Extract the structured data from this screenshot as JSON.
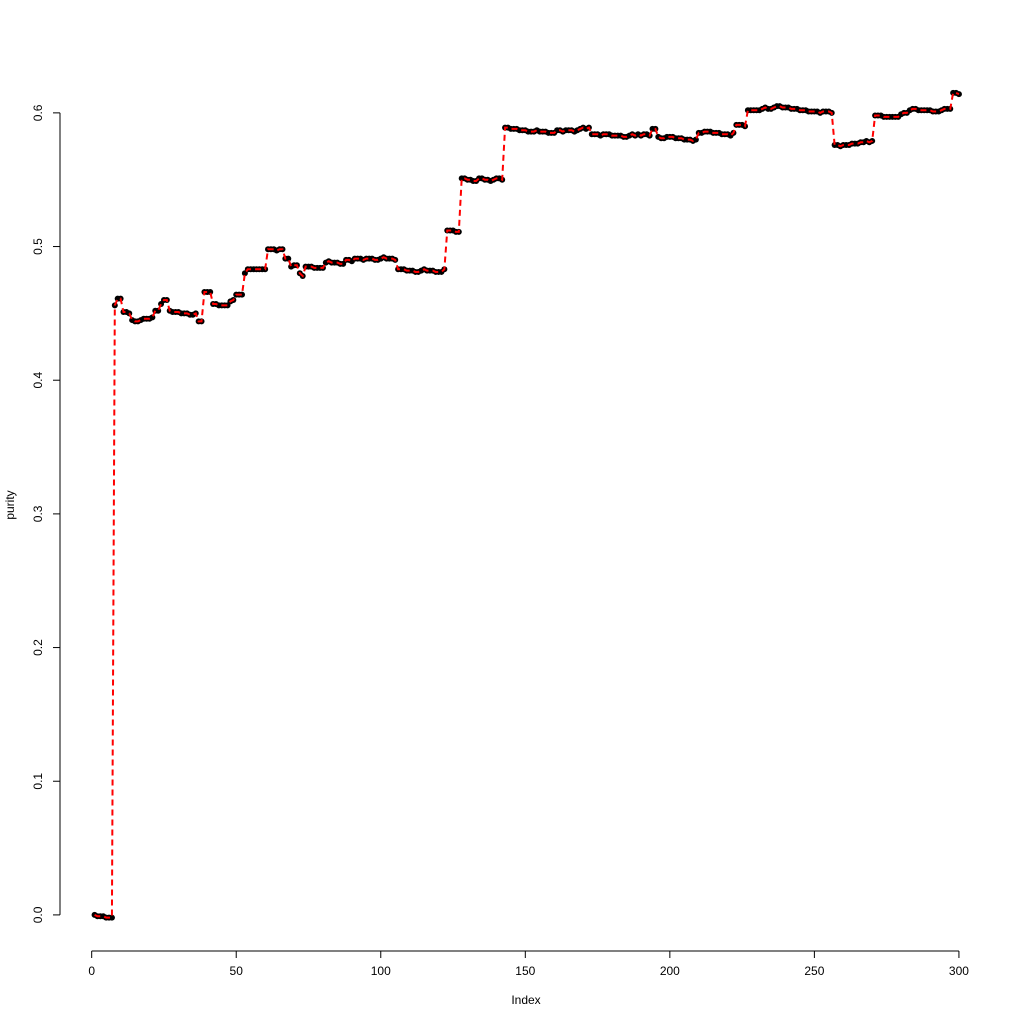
{
  "chart_data": {
    "type": "line",
    "xlabel": "Index",
    "ylabel": "purity",
    "x": [
      1,
      2,
      3,
      4,
      5,
      6,
      7,
      8,
      9,
      10,
      11,
      12,
      13,
      14,
      15,
      16,
      17,
      18,
      19,
      20,
      21,
      22,
      23,
      24,
      25,
      26,
      27,
      28,
      29,
      30,
      31,
      32,
      33,
      34,
      35,
      36,
      37,
      38,
      39,
      40,
      41,
      42,
      43,
      44,
      45,
      46,
      47,
      48,
      49,
      50,
      51,
      52,
      53,
      54,
      55,
      56,
      57,
      58,
      59,
      60,
      61,
      62,
      63,
      64,
      65,
      66,
      67,
      68,
      69,
      70,
      71,
      72,
      73,
      74,
      75,
      76,
      77,
      78,
      79,
      80,
      81,
      82,
      83,
      84,
      85,
      86,
      87,
      88,
      89,
      90,
      91,
      92,
      93,
      94,
      95,
      96,
      97,
      98,
      99,
      100,
      101,
      102,
      103,
      104,
      105,
      106,
      107,
      108,
      109,
      110,
      111,
      112,
      113,
      114,
      115,
      116,
      117,
      118,
      119,
      120,
      121,
      122,
      123,
      124,
      125,
      126,
      127,
      128,
      129,
      130,
      131,
      132,
      133,
      134,
      135,
      136,
      137,
      138,
      139,
      140,
      141,
      142,
      143,
      144,
      145,
      146,
      147,
      148,
      149,
      150,
      151,
      152,
      153,
      154,
      155,
      156,
      157,
      158,
      159,
      160,
      161,
      162,
      163,
      164,
      165,
      166,
      167,
      168,
      169,
      170,
      171,
      172,
      173,
      174,
      175,
      176,
      177,
      178,
      179,
      180,
      181,
      182,
      183,
      184,
      185,
      186,
      187,
      188,
      189,
      190,
      191,
      192,
      193,
      194,
      195,
      196,
      197,
      198,
      199,
      200,
      201,
      202,
      203,
      204,
      205,
      206,
      207,
      208,
      209,
      210,
      211,
      212,
      213,
      214,
      215,
      216,
      217,
      218,
      219,
      220,
      221,
      222,
      223,
      224,
      225,
      226,
      227,
      228,
      229,
      230,
      231,
      232,
      233,
      234,
      235,
      236,
      237,
      238,
      239,
      240,
      241,
      242,
      243,
      244,
      245,
      246,
      247,
      248,
      249,
      250,
      251,
      252,
      253,
      254,
      255,
      256,
      257,
      258,
      259,
      260,
      261,
      262,
      263,
      264,
      265,
      266,
      267,
      268,
      269,
      270,
      271,
      272,
      273,
      274,
      275,
      276,
      277,
      278,
      279,
      280,
      281,
      282,
      283,
      284,
      285,
      286,
      287,
      288,
      289,
      290,
      291,
      292,
      293,
      294,
      295,
      296,
      297,
      298,
      299,
      300
    ],
    "series": [
      {
        "color": "#ff0000",
        "point_color": "#000000",
        "values": [
          0,
          -0.001,
          -0.001,
          -0.001,
          -0.002,
          -0.002,
          -0.002,
          0.456,
          0.461,
          0.461,
          0.451,
          0.451,
          0.45,
          0.445,
          0.444,
          0.444,
          0.445,
          0.446,
          0.446,
          0.446,
          0.447,
          0.452,
          0.452,
          0.457,
          0.46,
          0.46,
          0.452,
          0.451,
          0.451,
          0.451,
          0.45,
          0.45,
          0.45,
          0.449,
          0.449,
          0.45,
          0.444,
          0.444,
          0.466,
          0.466,
          0.466,
          0.457,
          0.457,
          0.456,
          0.456,
          0.456,
          0.456,
          0.459,
          0.46,
          0.464,
          0.464,
          0.464,
          0.48,
          0.483,
          0.483,
          0.483,
          0.483,
          0.483,
          0.483,
          0.483,
          0.498,
          0.498,
          0.498,
          0.497,
          0.498,
          0.498,
          0.491,
          0.491,
          0.485,
          0.486,
          0.486,
          0.48,
          0.478,
          0.485,
          0.485,
          0.485,
          0.484,
          0.484,
          0.484,
          0.484,
          0.488,
          0.489,
          0.488,
          0.488,
          0.488,
          0.487,
          0.487,
          0.49,
          0.49,
          0.489,
          0.491,
          0.491,
          0.491,
          0.49,
          0.491,
          0.491,
          0.491,
          0.49,
          0.49,
          0.491,
          0.492,
          0.491,
          0.491,
          0.491,
          0.49,
          0.483,
          0.483,
          0.483,
          0.482,
          0.482,
          0.482,
          0.481,
          0.481,
          0.482,
          0.483,
          0.482,
          0.482,
          0.482,
          0.481,
          0.481,
          0.481,
          0.483,
          0.512,
          0.512,
          0.512,
          0.511,
          0.511,
          0.551,
          0.551,
          0.55,
          0.55,
          0.549,
          0.549,
          0.551,
          0.551,
          0.55,
          0.55,
          0.549,
          0.55,
          0.551,
          0.551,
          0.55,
          0.589,
          0.589,
          0.588,
          0.588,
          0.588,
          0.587,
          0.587,
          0.587,
          0.586,
          0.586,
          0.586,
          0.587,
          0.586,
          0.586,
          0.586,
          0.585,
          0.585,
          0.585,
          0.587,
          0.587,
          0.586,
          0.587,
          0.587,
          0.587,
          0.586,
          0.587,
          0.588,
          0.589,
          0.588,
          0.589,
          0.584,
          0.584,
          0.584,
          0.583,
          0.584,
          0.584,
          0.584,
          0.583,
          0.583,
          0.583,
          0.583,
          0.582,
          0.582,
          0.583,
          0.584,
          0.583,
          0.584,
          0.583,
          0.584,
          0.584,
          0.583,
          0.588,
          0.588,
          0.582,
          0.581,
          0.581,
          0.582,
          0.582,
          0.582,
          0.581,
          0.581,
          0.581,
          0.58,
          0.58,
          0.58,
          0.579,
          0.58,
          0.585,
          0.585,
          0.586,
          0.586,
          0.586,
          0.585,
          0.585,
          0.585,
          0.584,
          0.584,
          0.584,
          0.583,
          0.585,
          0.591,
          0.591,
          0.591,
          0.59,
          0.602,
          0.602,
          0.602,
          0.602,
          0.602,
          0.603,
          0.604,
          0.603,
          0.603,
          0.604,
          0.605,
          0.605,
          0.604,
          0.604,
          0.604,
          0.603,
          0.603,
          0.603,
          0.602,
          0.602,
          0.602,
          0.601,
          0.601,
          0.601,
          0.601,
          0.6,
          0.601,
          0.601,
          0.601,
          0.6,
          0.576,
          0.576,
          0.575,
          0.576,
          0.576,
          0.576,
          0.577,
          0.577,
          0.577,
          0.578,
          0.578,
          0.579,
          0.578,
          0.579,
          0.598,
          0.598,
          0.598,
          0.597,
          0.597,
          0.597,
          0.597,
          0.597,
          0.597,
          0.599,
          0.6,
          0.6,
          0.602,
          0.603,
          0.603,
          0.602,
          0.602,
          0.602,
          0.602,
          0.602,
          0.601,
          0.601,
          0.601,
          0.602,
          0.603,
          0.603,
          0.603,
          0.615,
          0.615,
          0.614
        ]
      }
    ],
    "xlim": [
      -10.96,
      311.96
    ],
    "ylim": [
      -0.027,
      0.64
    ],
    "xticks": [
      0,
      50,
      100,
      150,
      200,
      250,
      300
    ],
    "yticks": [
      {
        "value": 0,
        "label": "0.0"
      },
      0.1,
      0.2,
      0.3,
      0.4,
      0.5,
      0.6
    ]
  }
}
